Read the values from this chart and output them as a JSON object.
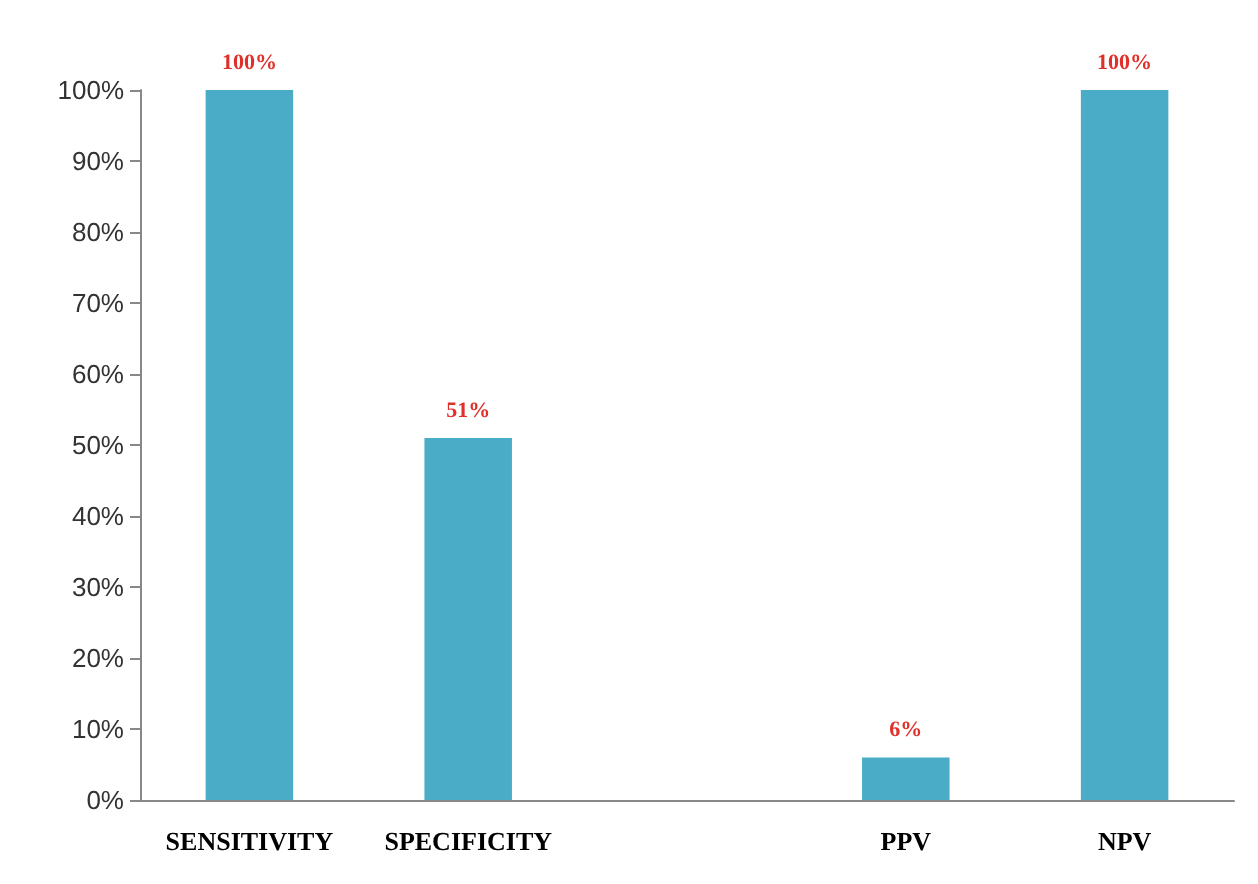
{
  "chart_data": {
    "type": "bar",
    "categories": [
      "SENSITIVITY",
      "SPECIFICITY",
      null,
      "PPV",
      "NPV"
    ],
    "values": [
      100,
      51,
      null,
      6,
      100
    ],
    "color": "#4aacc6",
    "value_labels": [
      "100%",
      "51%",
      null,
      "6%",
      "100%"
    ],
    "ylim": [
      0,
      100
    ],
    "yticks": [
      {
        "value": 0,
        "label": "0%"
      },
      {
        "value": 10,
        "label": "10%"
      },
      {
        "value": 20,
        "label": "20%"
      },
      {
        "value": 30,
        "label": "30%"
      },
      {
        "value": 40,
        "label": "40%"
      },
      {
        "value": 50,
        "label": "50%"
      },
      {
        "value": 60,
        "label": "60%"
      },
      {
        "value": 70,
        "label": "70%"
      },
      {
        "value": 80,
        "label": "80%"
      },
      {
        "value": 90,
        "label": "90%"
      },
      {
        "value": 100,
        "label": "100%"
      }
    ],
    "grid": false
  }
}
